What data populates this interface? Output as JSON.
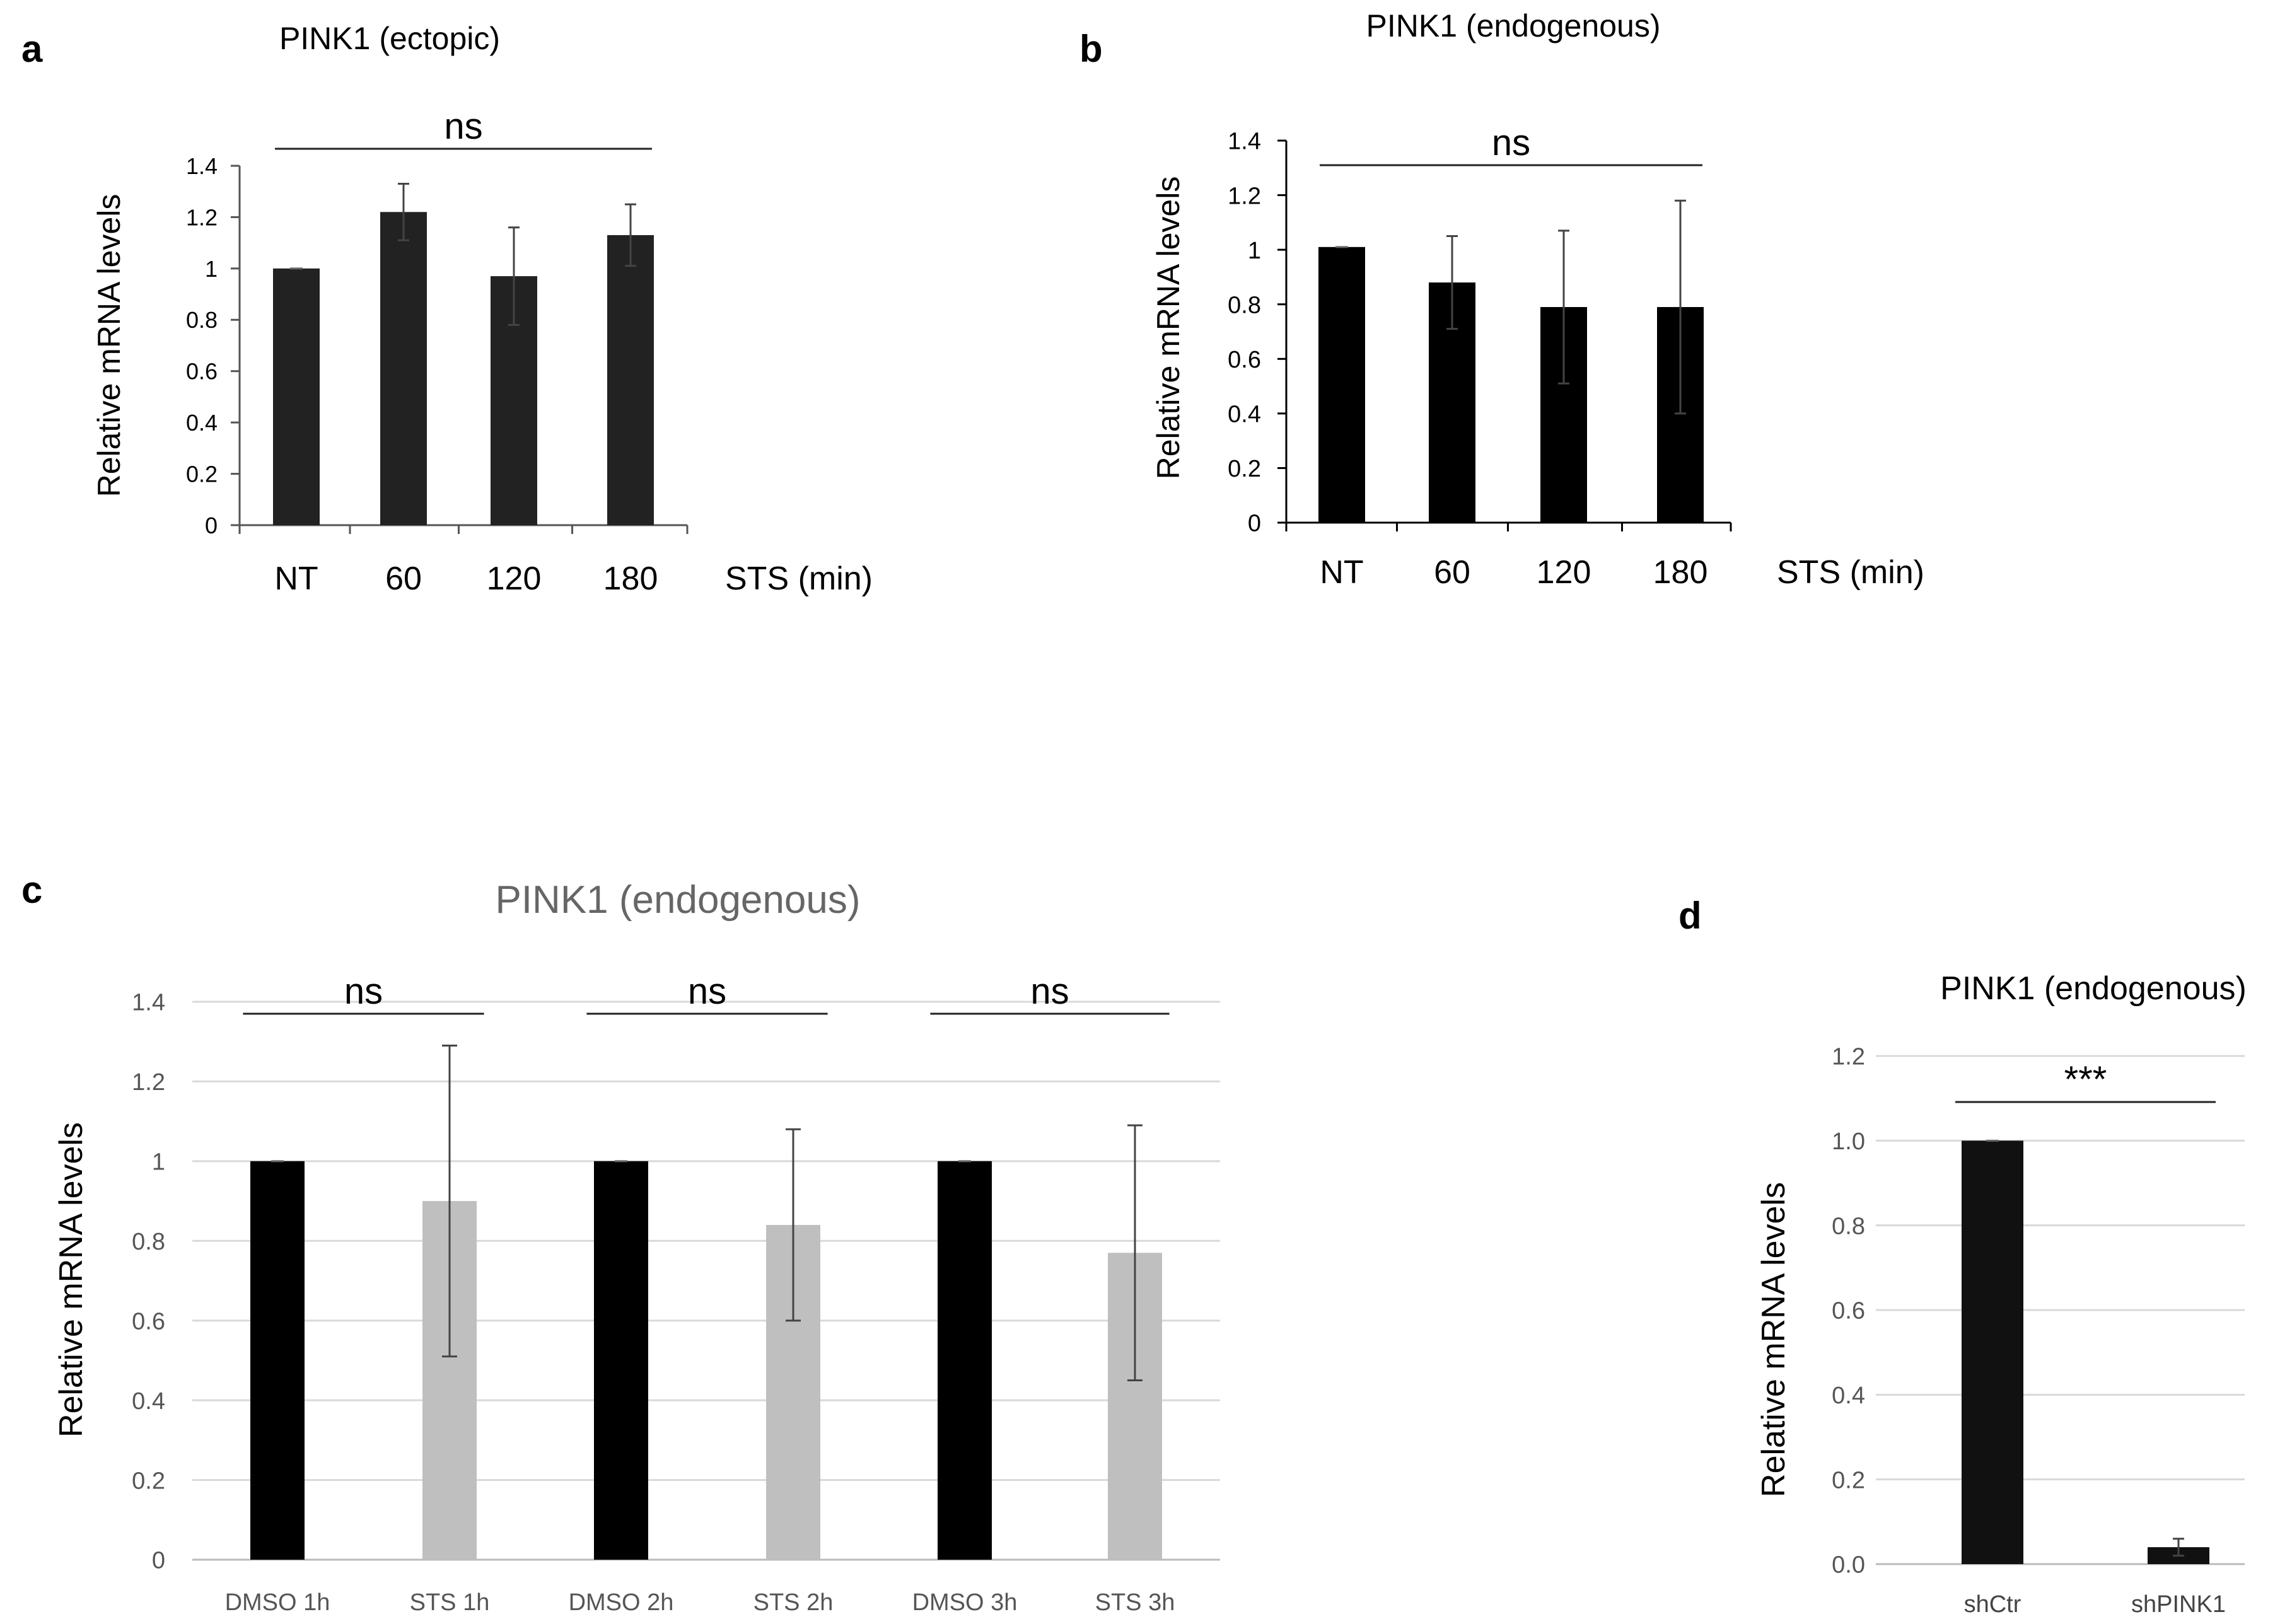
{
  "figure": {
    "panel_labels": [
      "a",
      "b",
      "c",
      "d"
    ]
  },
  "chart_data": [
    {
      "panel": "a",
      "type": "bar",
      "title": "PINK1 (ectopic)",
      "ylabel": "Relative mRNA levels",
      "xlabel": "STS (min)",
      "categories": [
        "NT",
        "60",
        "120",
        "180"
      ],
      "values": [
        1.0,
        1.22,
        0.97,
        1.13
      ],
      "errors": [
        0.0,
        0.11,
        0.19,
        0.12
      ],
      "bar_colors": [
        "#222222",
        "#222222",
        "#222222",
        "#222222"
      ],
      "ylim": [
        0,
        1.4
      ],
      "yticks": [
        "0",
        "0.2",
        "0.4",
        "0.6",
        "0.8",
        "1",
        "1.2",
        "1.4"
      ],
      "grid": false,
      "significance": [
        {
          "from": 0,
          "to": 3,
          "label": "ns"
        }
      ]
    },
    {
      "panel": "b",
      "type": "bar",
      "title": "PINK1 (endogenous)",
      "ylabel": "Relative mRNA levels",
      "xlabel": "STS (min)",
      "categories": [
        "NT",
        "60",
        "120",
        "180"
      ],
      "values": [
        1.01,
        0.88,
        0.79,
        0.79
      ],
      "errors": [
        0.0,
        0.17,
        0.28,
        0.39
      ],
      "bar_colors": [
        "#000000",
        "#000000",
        "#000000",
        "#000000"
      ],
      "ylim": [
        0,
        1.4
      ],
      "yticks": [
        "0",
        "0.2",
        "0.4",
        "0.6",
        "0.8",
        "1",
        "1.2",
        "1.4"
      ],
      "grid": false,
      "significance": [
        {
          "from": 0,
          "to": 3,
          "label": "ns"
        }
      ]
    },
    {
      "panel": "c",
      "type": "bar",
      "title": "PINK1 (endogenous)",
      "ylabel": "Relative mRNA levels",
      "xlabel": "",
      "categories": [
        "DMSO 1h",
        "STS 1h",
        "DMSO 2h",
        "STS 2h",
        "DMSO 3h",
        "STS 3h"
      ],
      "values": [
        1.0,
        0.9,
        1.0,
        0.84,
        1.0,
        0.77
      ],
      "errors": [
        0.0,
        0.39,
        0.0,
        0.24,
        0.0,
        0.32
      ],
      "bar_colors": [
        "#000000",
        "#bfbfbf",
        "#000000",
        "#bfbfbf",
        "#000000",
        "#bfbfbf"
      ],
      "ylim": [
        0,
        1.4
      ],
      "yticks": [
        "0",
        "0.2",
        "0.4",
        "0.6",
        "0.8",
        "1",
        "1.2",
        "1.4"
      ],
      "grid": true,
      "significance": [
        {
          "from": 0,
          "to": 1,
          "label": "ns"
        },
        {
          "from": 2,
          "to": 3,
          "label": "ns"
        },
        {
          "from": 4,
          "to": 5,
          "label": "ns"
        }
      ]
    },
    {
      "panel": "d",
      "type": "bar",
      "title": "PINK1 (endogenous)",
      "ylabel": "Relative mRNA levels",
      "xlabel": "",
      "categories": [
        "shCtr",
        "shPINK1"
      ],
      "values": [
        1.0,
        0.04
      ],
      "errors": [
        0.0,
        0.02
      ],
      "bar_colors": [
        "#111111",
        "#111111"
      ],
      "ylim": [
        0,
        1.2
      ],
      "yticks": [
        "0.0",
        "0.2",
        "0.4",
        "0.6",
        "0.8",
        "1.0",
        "1.2"
      ],
      "grid": true,
      "significance": [
        {
          "from": 0,
          "to": 1,
          "label": "***"
        }
      ]
    }
  ]
}
